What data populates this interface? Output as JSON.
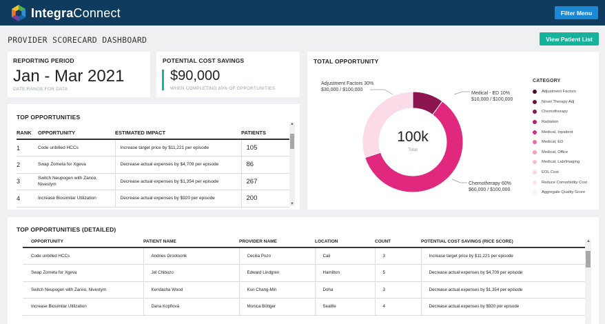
{
  "header": {
    "brand_bold": "Integra",
    "brand_rest": "Connect",
    "filter_label": "Filter Menu"
  },
  "page": {
    "title": "PROVIDER SCORECARD DASHBOARD",
    "view_patient_label": "View Patient List"
  },
  "reporting_period": {
    "label": "REPORTING PERIOD",
    "value": "Jan - Mar 2021",
    "sub": "DATE RANGE FOR DATA"
  },
  "cost_savings": {
    "label": "POTENTIAL COST SAVINGS",
    "value": "$90,000",
    "sub": "WHEN COMPLETING 80% OF OPPORTUNITIES"
  },
  "top_opportunities": {
    "title": "TOP OPPORTUNITIES",
    "columns": [
      "RANK",
      "OPPORTUNITY",
      "ESTIMATED IMPACT",
      "PATIENTS"
    ],
    "rows": [
      {
        "rank": "1",
        "opportunity": "Code unbilled HCCs",
        "impact": "Increase target price by $11,221 per episode",
        "patients": "105"
      },
      {
        "rank": "2",
        "opportunity": "Swap Zometa for Xgeva",
        "impact": "Decrease actual expenses by $4,709 per episode",
        "patients": "86"
      },
      {
        "rank": "3",
        "opportunity": "Switch Neupogen with Zarxio, Nivestym",
        "impact": "Decrease actual expenses by $1,354 per episode",
        "patients": "267"
      },
      {
        "rank": "4",
        "opportunity": "Increase Biosimilar Utilization",
        "impact": "Decrease actual expenses by $920 per episode",
        "patients": "200"
      }
    ]
  },
  "total_opportunity": {
    "title": "TOTAL OPPORTUNITY",
    "center_value": "100k",
    "center_label": "Total",
    "annotations": {
      "adjustment": {
        "line1": "Adjustment Factors 30%",
        "line2": "$30,000 / $100,000"
      },
      "medical_ed": {
        "line1": "Medical - ED 10%",
        "line2": "$10,000 / $100,000"
      },
      "chemo": {
        "line1": "Chemotherapy 60%",
        "line2": "$60,000 / $100,000"
      }
    },
    "legend_title": "CATEGORY",
    "legend": [
      {
        "label": "Adjustment Factors",
        "color": "#4a0a2a"
      },
      {
        "label": "Novel Therapy Adj",
        "color": "#6e0f3c"
      },
      {
        "label": "Chemotherapy",
        "color": "#8c1450"
      },
      {
        "label": "Radiation",
        "color": "#b8196a"
      },
      {
        "label": "Medical, Inpatient",
        "color": "#e0287f"
      },
      {
        "label": "Medical, ED",
        "color": "#eb6aa4"
      },
      {
        "label": "Medical, Office",
        "color": "#f29cc2"
      },
      {
        "label": "Medical, Lab/Imaging",
        "color": "#f6bed6"
      },
      {
        "label": "EOL Cost",
        "color": "#f9d4e3"
      },
      {
        "label": "Reduce Comorbidity Cost",
        "color": "#fbe2ec"
      },
      {
        "label": "Aggregate Quality Score",
        "color": "#fdeef4"
      }
    ]
  },
  "chart_data": {
    "type": "pie",
    "title": "TOTAL OPPORTUNITY",
    "center": "100k Total",
    "slices": [
      {
        "name": "Medical - ED",
        "percent": 10,
        "value": 10000,
        "color": "#8c1450"
      },
      {
        "name": "Chemotherapy",
        "percent": 60,
        "value": 60000,
        "color": "#e0287f"
      },
      {
        "name": "Adjustment Factors",
        "percent": 30,
        "value": 30000,
        "color": "#fbdbe8"
      }
    ],
    "total": 100000
  },
  "detailed": {
    "title": "TOP OPPORTUNITIES (DETAILED)",
    "columns": [
      "OPPORTUNITY",
      "PATIENT NAME",
      "PROVIDER NAME",
      "LOCATION",
      "COUNT",
      "POTENTIAL COST SAVINGS (RICE SCORE)"
    ],
    "rows": [
      {
        "opportunity": "Code unbilled HCCs",
        "patient": "Andries Grootoonk",
        "provider": "Cecilia Pozo",
        "location": "Cali",
        "count": "3",
        "savings": "Increase target price by $11,221 per episode"
      },
      {
        "opportunity": "Swap Zometa for Xgeva",
        "patient": "Jel Chibuzo",
        "provider": "Edward Lindgren",
        "location": "Hamilton",
        "count": "5",
        "savings": "Decrease actual expenses by $4,709 per episode"
      },
      {
        "opportunity": "Switch Neupogen with Zarxio, Nivestym",
        "patient": "Kendasha Wood",
        "provider": "Kun Chang-Min",
        "location": "Doha",
        "count": "3",
        "savings": "Decrease actual expenses by $1,354 per episode"
      },
      {
        "opportunity": "Increase Biosimilar Utilization",
        "patient": "Dana Kopfiová",
        "provider": "Monica Böttger",
        "location": "Seattle",
        "count": "4",
        "savings": "Decrease actual expenses by $920 per episode"
      }
    ]
  }
}
